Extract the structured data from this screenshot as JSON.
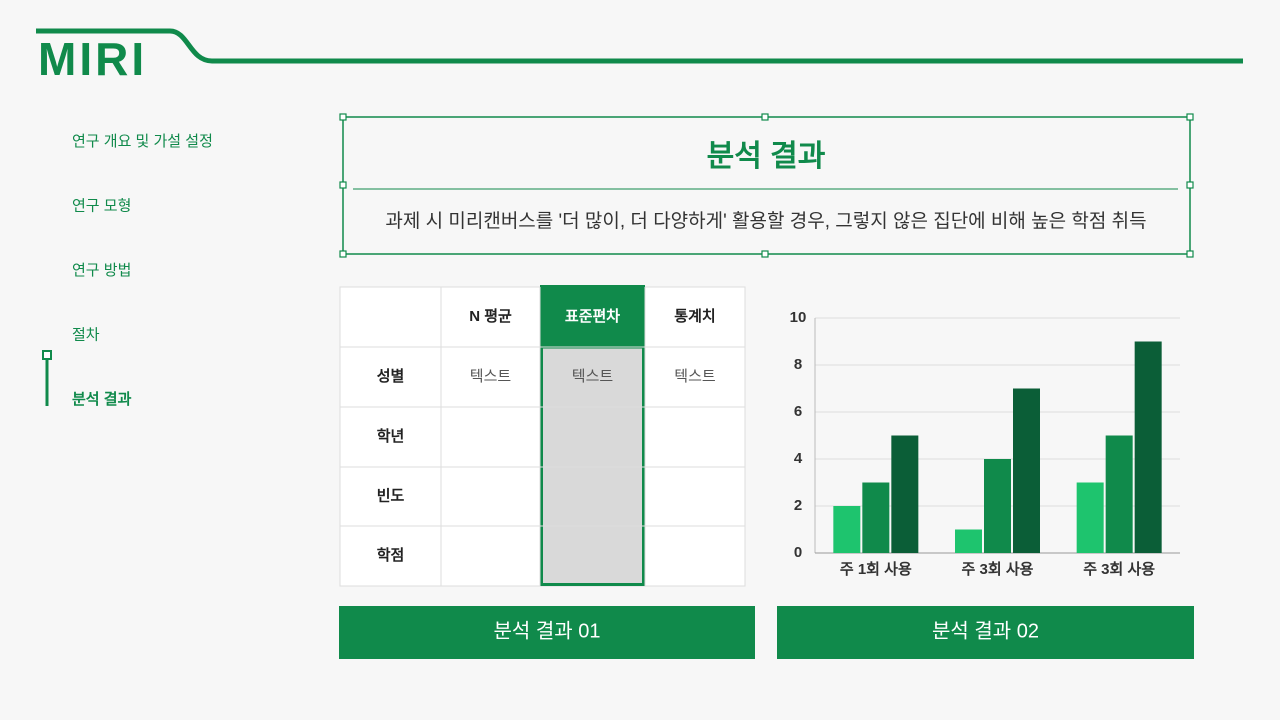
{
  "logo": "MIRI",
  "nav": {
    "items": [
      "연구 개요 및 가설 설정",
      "연구 모형",
      "연구 방법",
      "절차",
      "분석 결과"
    ],
    "active": 4
  },
  "header": {
    "title": "분석 결과",
    "subtitle": "과제 시 미리캔버스를 '더 많이, 더 다양하게' 활용할 경우, 그렇지 않은 집단에 비해 높은 학점 취득"
  },
  "table": {
    "columns": [
      "N 평균",
      "표준편차",
      "통계치"
    ],
    "highlight_column": 1,
    "rows": [
      [
        "성별",
        "텍스트",
        "텍스트",
        "텍스트"
      ],
      [
        "학년"
      ],
      [
        "빈도"
      ],
      [
        "학점"
      ]
    ]
  },
  "captions": [
    "분석 결과 01",
    "분석 결과 02"
  ],
  "chart_data": {
    "type": "bar",
    "categories": [
      "주 1회 사용",
      "주 3회 사용",
      "주 3회 사용"
    ],
    "series": [
      {
        "color": "#1ec46e",
        "values": [
          2,
          1,
          3
        ]
      },
      {
        "color": "#108a4b",
        "values": [
          3,
          4,
          5
        ]
      },
      {
        "color": "#0b5e37",
        "values": [
          5,
          7,
          9
        ]
      }
    ],
    "ylim": [
      0,
      10
    ],
    "yticks": [
      0,
      2,
      4,
      6,
      8,
      10
    ],
    "grid": true
  }
}
